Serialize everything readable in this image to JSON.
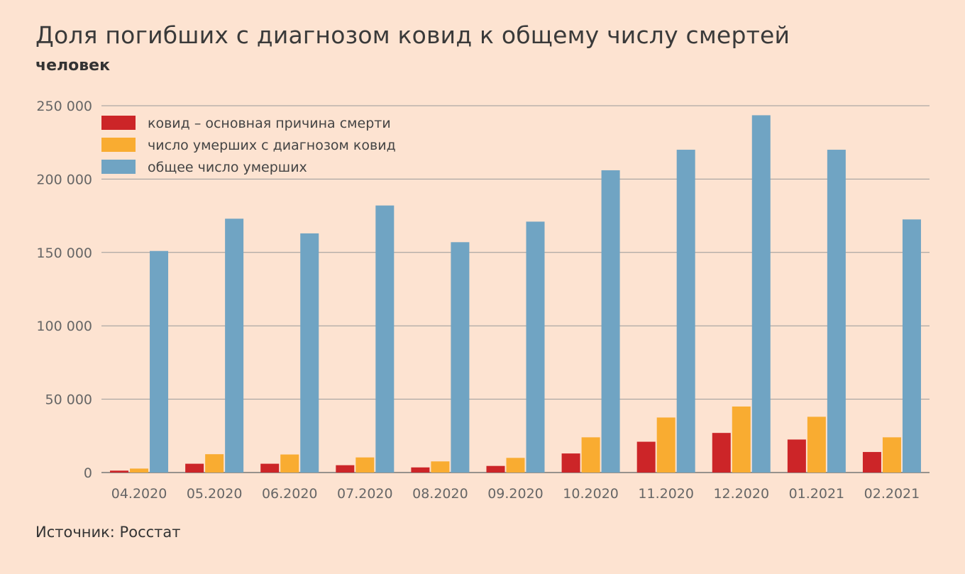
{
  "title": "Доля погибших с диагнозом ковид к общему числу смертей",
  "subtitle": "человек",
  "source": "Источник: Росстат",
  "chart_data": {
    "type": "bar",
    "categories": [
      "04.2020",
      "05.2020",
      "06.2020",
      "07.2020",
      "08.2020",
      "09.2020",
      "10.2020",
      "11.2020",
      "12.2020",
      "01.2021",
      "02.2021"
    ],
    "series": [
      {
        "name": "ковид – основная причина смерти",
        "color": "#cc2528",
        "values": [
          1300,
          6000,
          6000,
          5000,
          3500,
          4500,
          13000,
          21000,
          27000,
          22500,
          14000
        ]
      },
      {
        "name": "число умерших с диагнозом ковид",
        "color": "#f9ac31",
        "values": [
          2700,
          12500,
          12300,
          10300,
          7600,
          10000,
          24000,
          37500,
          45000,
          38000,
          24000
        ]
      },
      {
        "name": "общее число умерших",
        "color": "#70a4c3",
        "values": [
          151000,
          173000,
          163000,
          182000,
          157000,
          171000,
          206000,
          220000,
          243500,
          220000,
          172500
        ]
      }
    ],
    "ylim": [
      0,
      250000
    ],
    "yticks": [
      0,
      50000,
      100000,
      150000,
      200000,
      250000
    ],
    "ytick_labels": [
      "0",
      "50 000",
      "100 000",
      "150 000",
      "200 000",
      "250 000"
    ],
    "grid": true,
    "legend_position": "top-left"
  }
}
